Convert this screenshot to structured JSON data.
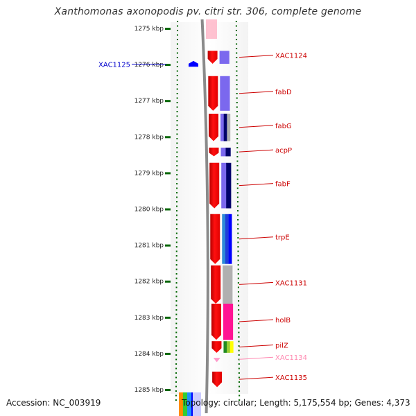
{
  "title": "Xanthomonas axonopodis pv. citri str. 306, complete genome",
  "accession": "Accession: NC_003919",
  "summary": "Topology: circular; Length: 5,175,554 bp; Genes: 4,373",
  "colors": {
    "forward_strand": "#ff0000",
    "backbone": "#888888",
    "tick": "#006600",
    "label": "#cc0000",
    "reverse_label": "#0000cc",
    "faded_label": "#ff88b0"
  },
  "ruler": {
    "ticks": [
      {
        "kbp": 1275,
        "label": "1275 kbp"
      },
      {
        "kbp": 1276,
        "label": "1276 kbp"
      },
      {
        "kbp": 1277,
        "label": "1277 kbp"
      },
      {
        "kbp": 1278,
        "label": "1278 kbp"
      },
      {
        "kbp": 1279,
        "label": "1279 kbp"
      },
      {
        "kbp": 1280,
        "label": "1280 kbp"
      },
      {
        "kbp": 1281,
        "label": "1281 kbp"
      },
      {
        "kbp": 1282,
        "label": "1282 kbp"
      },
      {
        "kbp": 1283,
        "label": "1283 kbp"
      },
      {
        "kbp": 1284,
        "label": "1284 kbp"
      },
      {
        "kbp": 1285,
        "label": "1285 kbp"
      }
    ]
  },
  "genes": [
    {
      "name": "XAC1124",
      "start_kbp": 1275.62,
      "end_kbp": 1275.98,
      "strand": "+",
      "cog": [
        "#7b68ee"
      ],
      "label_color": "#cc0000"
    },
    {
      "name": "fabD",
      "start_kbp": 1276.32,
      "end_kbp": 1277.28,
      "strand": "+",
      "cog": [
        "#7b68ee"
      ],
      "label_color": "#cc0000"
    },
    {
      "name": "fabG",
      "start_kbp": 1277.36,
      "end_kbp": 1278.12,
      "strand": "+",
      "cog": [
        "#7b68ee",
        "#00006a",
        "#b0b0b0"
      ],
      "label_color": "#cc0000"
    },
    {
      "name": "acpP",
      "start_kbp": 1278.3,
      "end_kbp": 1278.54,
      "strand": "+",
      "cog": [
        "#7b68ee",
        "#00006a"
      ],
      "label_color": "#cc0000"
    },
    {
      "name": "fabF",
      "start_kbp": 1278.72,
      "end_kbp": 1279.98,
      "strand": "+",
      "cog": [
        "#7b68ee",
        "#00006a"
      ],
      "label_color": "#cc0000"
    },
    {
      "name": "trpE",
      "start_kbp": 1280.14,
      "end_kbp": 1281.52,
      "strand": "+",
      "cog": [
        "#2e8bd8",
        "#1f3fd8",
        "#0000ff"
      ],
      "label_color": "#cc0000"
    },
    {
      "name": "XAC1131",
      "start_kbp": 1281.56,
      "end_kbp": 1282.62,
      "strand": "+",
      "cog": [
        "#b0b0b0"
      ],
      "label_color": "#cc0000"
    },
    {
      "name": "holB",
      "start_kbp": 1282.62,
      "end_kbp": 1283.62,
      "strand": "+",
      "cog": [
        "#ff1493"
      ],
      "label_color": "#cc0000"
    },
    {
      "name": "pilZ",
      "start_kbp": 1283.66,
      "end_kbp": 1283.98,
      "strand": "+",
      "cog": [
        "#228b22",
        "#9acd32",
        "#ffff00"
      ],
      "label_color": "#cc0000"
    },
    {
      "name": "XAC1134",
      "start_kbp": 1284.12,
      "end_kbp": 1284.2,
      "strand": "+",
      "cog": [],
      "label_color": "#ff88b0"
    },
    {
      "name": "XAC1135",
      "start_kbp": 1284.5,
      "end_kbp": 1284.93,
      "strand": "+",
      "cog": [],
      "label_color": "#cc0000"
    }
  ],
  "reverse_genes": [
    {
      "name": "XAC1125",
      "start_kbp": 1275.9,
      "end_kbp": 1276.06,
      "strand": "-",
      "label_color": "#0000cc"
    }
  ],
  "legend_colors": [
    "#ff8c00",
    "#33cc33",
    "#1e90ff",
    "#0000ff"
  ]
}
